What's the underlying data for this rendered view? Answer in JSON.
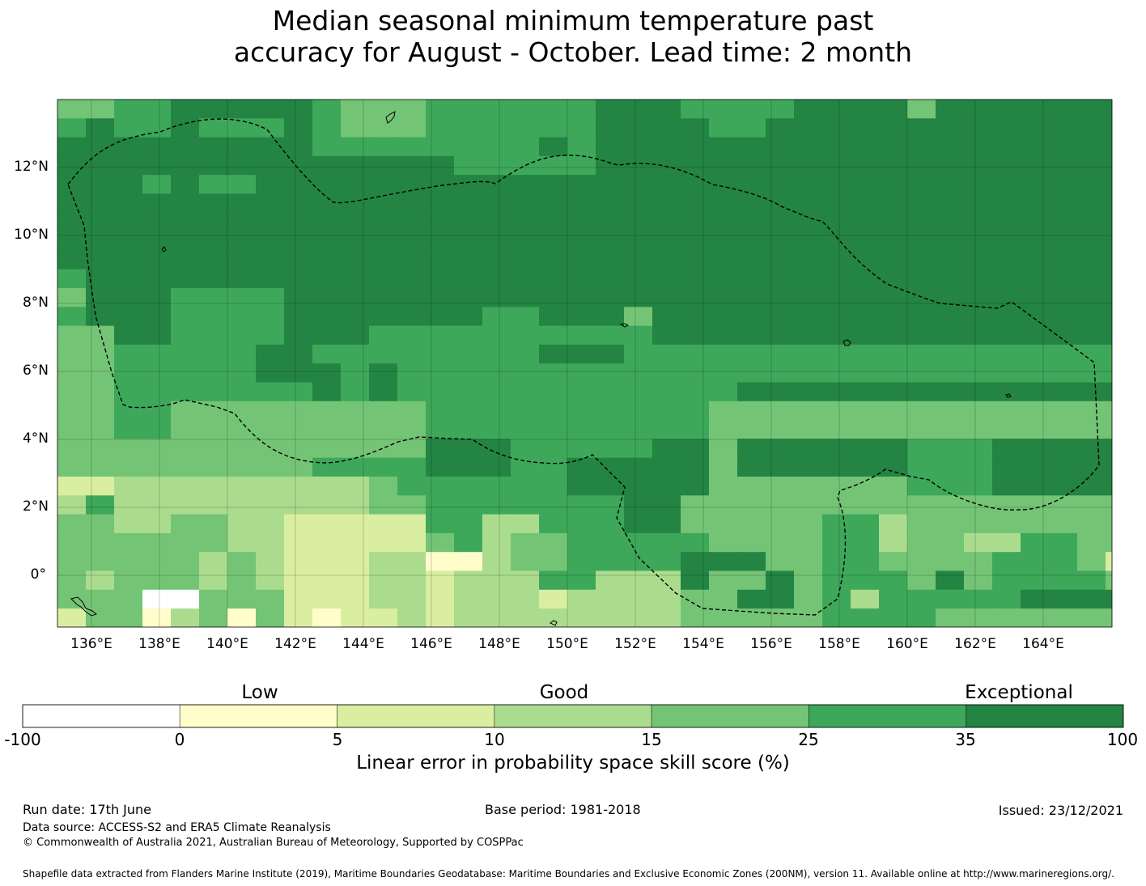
{
  "title": {
    "line1": "Median seasonal minimum temperature past",
    "line2": "accuracy for August - October. Lead time: 2 month"
  },
  "map": {
    "lat_labels": [
      "12°N",
      "10°N",
      "8°N",
      "6°N",
      "4°N",
      "2°N",
      "0°"
    ],
    "lon_labels": [
      "136°E",
      "138°E",
      "140°E",
      "142°E",
      "144°E",
      "146°E",
      "148°E",
      "150°E",
      "152°E",
      "154°E",
      "156°E",
      "158°E",
      "160°E",
      "162°E",
      "164°E"
    ],
    "longitude_range": [
      135,
      166
    ],
    "latitude_range": [
      -1.5,
      14
    ]
  },
  "colorbar": {
    "categories": [
      "Low",
      "Good",
      "Exceptional"
    ],
    "ticks": [
      "-100",
      "0",
      "5",
      "10",
      "15",
      "25",
      "35",
      "100"
    ],
    "colors": [
      "#ffffff",
      "#fffdc9",
      "#d9eea0",
      "#abdc8d",
      "#74c476",
      "#3ea85a",
      "#238443"
    ],
    "label": "Linear error in probability space skill score (%)"
  },
  "footer": {
    "run_date": "Run date: 17th June",
    "base_period": "Base period: 1981-2018",
    "issued": "Issued: 23/12/2021",
    "data_source": "Data source: ACCESS-S2 and ERA5 Climate Reanalysis",
    "copyright": "© Commonwealth of Australia 2021, Australian Bureau of Meteorology, Supported by COSPPac",
    "shapefile": "Shapefile data extracted from Flanders Marine Institute (2019), Maritime Boundaries Geodatabase: Maritime Boundaries and Exclusive Economic Zones (200NM), version 11. Available online at http://www.marineregions.org/."
  }
}
